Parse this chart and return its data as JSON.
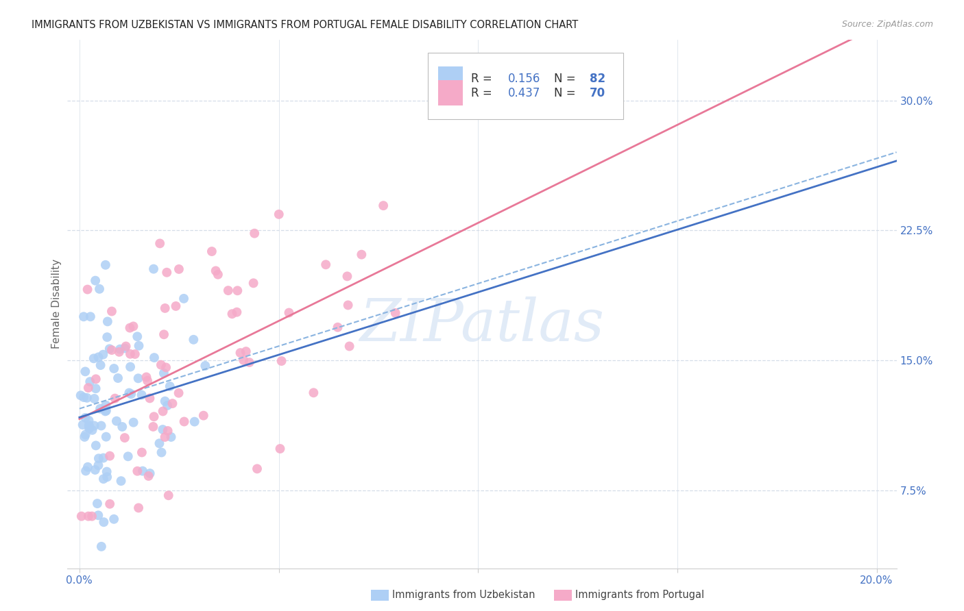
{
  "title": "IMMIGRANTS FROM UZBEKISTAN VS IMMIGRANTS FROM PORTUGAL FEMALE DISABILITY CORRELATION CHART",
  "source": "Source: ZipAtlas.com",
  "ylabel": "Female Disability",
  "ytick_values": [
    0.075,
    0.15,
    0.225,
    0.3
  ],
  "ytick_labels": [
    "7.5%",
    "15.0%",
    "22.5%",
    "30.0%"
  ],
  "xtick_values": [
    0.0,
    0.05,
    0.1,
    0.15,
    0.2
  ],
  "xtick_labels": [
    "0.0%",
    "",
    "",
    "",
    "20.0%"
  ],
  "xlim": [
    -0.003,
    0.205
  ],
  "ylim": [
    0.03,
    0.335
  ],
  "legend_text_r1": "R = ",
  "legend_val_r1": "0.156",
  "legend_text_n1": "N = ",
  "legend_val_n1": "82",
  "legend_text_r2": "R = ",
  "legend_val_r2": "0.437",
  "legend_text_n2": "N = ",
  "legend_val_n2": "70",
  "color_uzbekistan_face": "#aecff5",
  "color_uzbekistan_edge": "#aecff5",
  "color_portugal_face": "#f5aac8",
  "color_portugal_edge": "#f5aac8",
  "color_line_uzbekistan": "#8ab4e0",
  "color_line_portugal": "#e87898",
  "color_axis_text": "#4472c4",
  "color_dark": "#333333",
  "watermark": "ZIPatlas",
  "R_uzbekistan": 0.156,
  "N_uzbekistan": 82,
  "R_portugal": 0.437,
  "N_portugal": 70,
  "seed_uz": 123,
  "seed_pt": 456,
  "bottom_legend_label1": "Immigrants from Uzbekistan",
  "bottom_legend_label2": "Immigrants from Portugal"
}
